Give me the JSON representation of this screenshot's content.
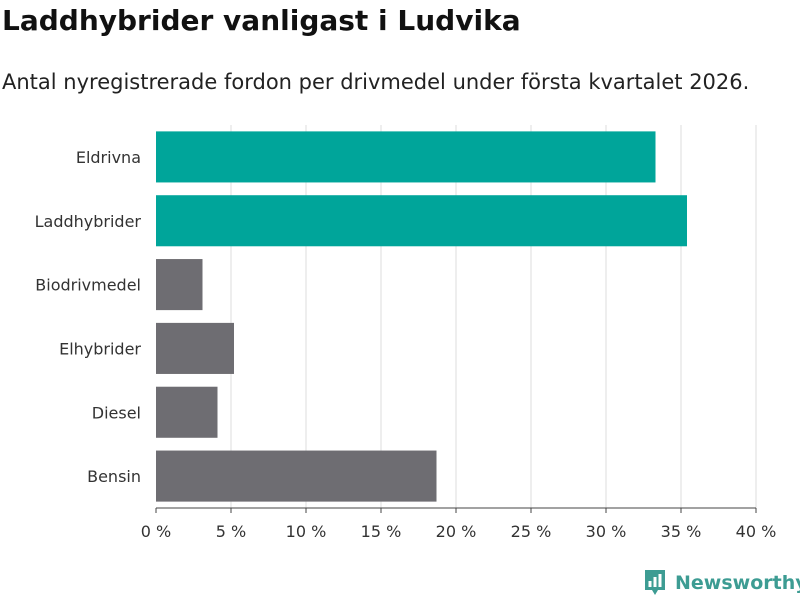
{
  "title": "Laddhybrider vanligast i Ludvika",
  "subtitle": "Antal nyregistrerade fordon per drivmedel under första kvartalet 2026.",
  "logo": {
    "text": "Newsworthy",
    "icon": "bar-chart-logo-icon"
  },
  "colors": {
    "highlight": "#00a59a",
    "default": "#6e6d72",
    "grid": "#dddddd",
    "logo": "#3d9c93"
  },
  "chart_data": {
    "type": "bar",
    "orientation": "horizontal",
    "categories": [
      "Eldrivna",
      "Laddhybrider",
      "Biodrivmedel",
      "Elhybrider",
      "Diesel",
      "Bensin"
    ],
    "values": [
      33.3,
      35.4,
      3.1,
      5.2,
      4.1,
      18.7
    ],
    "highlighted": [
      true,
      true,
      false,
      false,
      false,
      false
    ],
    "xlim": [
      0,
      40
    ],
    "xticks": [
      0,
      5,
      10,
      15,
      20,
      25,
      30,
      35,
      40
    ],
    "xtick_labels": [
      "0 %",
      "5 %",
      "10 %",
      "15 %",
      "20 %",
      "25 %",
      "30 %",
      "35 %",
      "40 %"
    ],
    "grid": true
  }
}
